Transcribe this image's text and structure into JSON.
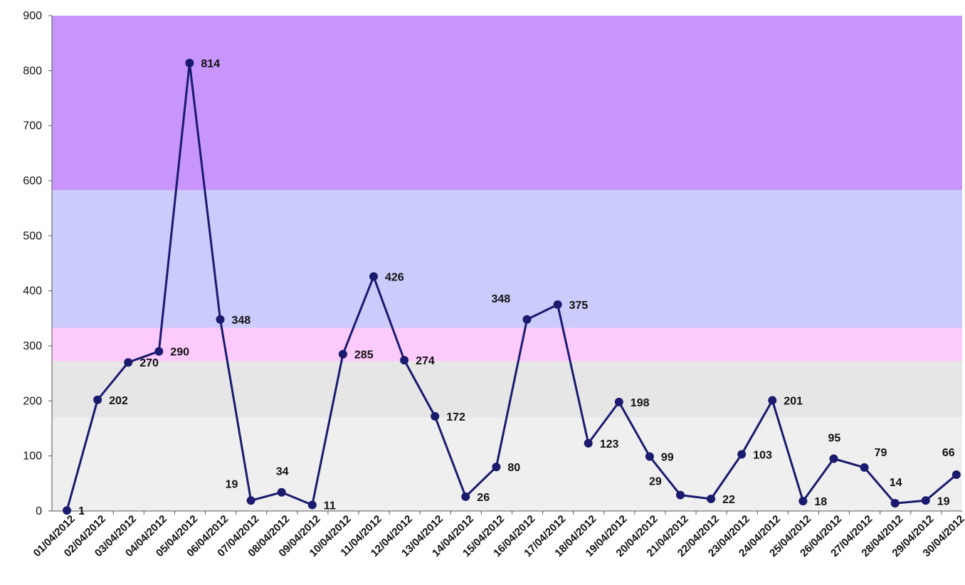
{
  "chart_data": {
    "type": "line",
    "title": "",
    "xlabel": "",
    "ylabel": "",
    "ylim": [
      0,
      900
    ],
    "yticks": [
      0,
      100,
      200,
      300,
      400,
      500,
      600,
      700,
      800,
      900
    ],
    "grid": false,
    "legend": "none",
    "categories": [
      "01/04/2012",
      "02/04/2012",
      "03/04/2012",
      "04/04/2012",
      "05/04/2012",
      "06/04/2012",
      "07/04/2012",
      "08/04/2012",
      "09/04/2012",
      "10/04/2012",
      "11/04/2012",
      "12/04/2012",
      "13/04/2012",
      "14/04/2012",
      "15/04/2012",
      "16/04/2012",
      "17/04/2012",
      "18/04/2012",
      "19/04/2012",
      "20/04/2012",
      "21/04/2012",
      "22/04/2012",
      "23/04/2012",
      "24/04/2012",
      "25/04/2012",
      "26/04/2012",
      "27/04/2012",
      "28/04/2012",
      "29/04/2012",
      "30/04/2012"
    ],
    "series": [
      {
        "values": [
          1,
          202,
          270,
          290,
          814,
          348,
          19,
          34,
          11,
          285,
          426,
          274,
          172,
          26,
          80,
          348,
          375,
          123,
          198,
          99,
          29,
          22,
          103,
          201,
          18,
          95,
          79,
          14,
          19,
          66
        ],
        "color": "#1a1a6e"
      }
    ],
    "background_bands": [
      {
        "from": 0,
        "to": 170,
        "color": "#efefef"
      },
      {
        "from": 170,
        "to": 272,
        "color": "#e6e6e6"
      },
      {
        "from": 272,
        "to": 333,
        "color": "#fccbfc"
      },
      {
        "from": 333,
        "to": 583,
        "color": "#cbcbfc"
      },
      {
        "from": 583,
        "to": 900,
        "color": "#c795fc"
      }
    ]
  }
}
